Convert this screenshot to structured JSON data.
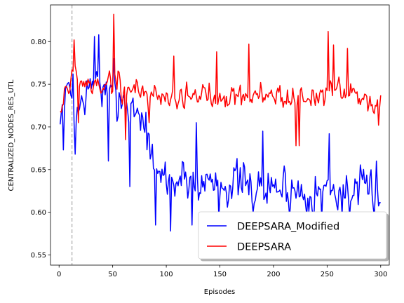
{
  "chart_data": {
    "type": "line",
    "xlabel": "Episodes",
    "ylabel": "CENTRALIZED_NODES_RES_UTL",
    "xlim": [
      -8,
      308
    ],
    "ylim": [
      0.538,
      0.843
    ],
    "xticks": [
      0,
      50,
      100,
      150,
      200,
      250,
      300
    ],
    "yticks": [
      0.55,
      0.6,
      0.65,
      0.7,
      0.75,
      0.8
    ],
    "ytick_labels": [
      "0.55",
      "0.60",
      "0.65",
      "0.70",
      "0.75",
      "0.80"
    ],
    "vline": {
      "x": 12,
      "style": "dashed",
      "color": "#bbbbbb"
    },
    "legend": {
      "position": "lower-right",
      "shadow": true
    },
    "series": [
      {
        "name": "DEEPSARA_Modified",
        "color": "#0000ff",
        "anchors": [
          [
            1,
            0.705
          ],
          [
            5,
            0.733
          ],
          [
            10,
            0.748
          ],
          [
            15,
            0.712
          ],
          [
            20,
            0.725
          ],
          [
            25,
            0.738
          ],
          [
            30,
            0.742
          ],
          [
            35,
            0.765
          ],
          [
            40,
            0.742
          ],
          [
            45,
            0.735
          ],
          [
            50,
            0.73
          ],
          [
            55,
            0.738
          ],
          [
            60,
            0.735
          ],
          [
            65,
            0.722
          ],
          [
            70,
            0.722
          ],
          [
            75,
            0.718
          ],
          [
            80,
            0.702
          ],
          [
            85,
            0.675
          ],
          [
            90,
            0.632
          ],
          [
            95,
            0.645
          ],
          [
            100,
            0.642
          ],
          [
            105,
            0.635
          ],
          [
            110,
            0.638
          ],
          [
            120,
            0.642
          ],
          [
            130,
            0.632
          ],
          [
            140,
            0.638
          ],
          [
            150,
            0.636
          ],
          [
            160,
            0.634
          ],
          [
            170,
            0.632
          ],
          [
            180,
            0.628
          ],
          [
            190,
            0.626
          ],
          [
            200,
            0.63
          ],
          [
            210,
            0.628
          ],
          [
            220,
            0.625
          ],
          [
            230,
            0.625
          ],
          [
            240,
            0.623
          ],
          [
            250,
            0.628
          ],
          [
            260,
            0.626
          ],
          [
            270,
            0.622
          ],
          [
            280,
            0.62
          ],
          [
            290,
            0.628
          ],
          [
            300,
            0.622
          ]
        ],
        "amp": [
          [
            1,
            0.022
          ],
          [
            20,
            0.03
          ],
          [
            50,
            0.035
          ],
          [
            80,
            0.035
          ],
          [
            95,
            0.035
          ],
          [
            150,
            0.036
          ],
          [
            300,
            0.032
          ]
        ],
        "seed": 7,
        "count": 300,
        "points": [
          [
            1,
            0.703
          ],
          [
            4,
            0.673
          ],
          [
            13,
            0.762
          ],
          [
            15,
            0.668
          ],
          [
            33,
            0.806
          ],
          [
            37,
            0.808
          ],
          [
            46,
            0.66
          ],
          [
            51,
            0.78
          ],
          [
            66,
            0.63
          ],
          [
            90,
            0.585
          ],
          [
            104,
            0.578
          ],
          [
            124,
            0.585
          ],
          [
            128,
            0.705
          ],
          [
            149,
            0.593
          ],
          [
            190,
            0.695
          ],
          [
            245,
            0.592
          ],
          [
            252,
            0.692
          ],
          [
            264,
            0.597
          ],
          [
            296,
            0.66
          ],
          [
            300,
            0.611
          ]
        ]
      },
      {
        "name": "DEEPSARA",
        "color": "#ff0000",
        "anchors": [
          [
            1,
            0.715
          ],
          [
            5,
            0.745
          ],
          [
            10,
            0.748
          ],
          [
            15,
            0.768
          ],
          [
            20,
            0.748
          ],
          [
            25,
            0.752
          ],
          [
            30,
            0.745
          ],
          [
            35,
            0.752
          ],
          [
            40,
            0.75
          ],
          [
            45,
            0.748
          ],
          [
            50,
            0.755
          ],
          [
            55,
            0.752
          ],
          [
            60,
            0.742
          ],
          [
            70,
            0.745
          ],
          [
            80,
            0.74
          ],
          [
            90,
            0.738
          ],
          [
            100,
            0.736
          ],
          [
            120,
            0.735
          ],
          [
            140,
            0.738
          ],
          [
            160,
            0.738
          ],
          [
            180,
            0.736
          ],
          [
            200,
            0.738
          ],
          [
            220,
            0.732
          ],
          [
            240,
            0.738
          ],
          [
            260,
            0.74
          ],
          [
            280,
            0.736
          ],
          [
            300,
            0.726
          ]
        ],
        "amp": [
          [
            1,
            0.018
          ],
          [
            50,
            0.022
          ],
          [
            100,
            0.02
          ],
          [
            300,
            0.02
          ]
        ],
        "seed": 19,
        "count": 300,
        "points": [
          [
            1,
            0.718
          ],
          [
            14,
            0.802
          ],
          [
            18,
            0.705
          ],
          [
            51,
            0.832
          ],
          [
            62,
            0.685
          ],
          [
            84,
            0.705
          ],
          [
            107,
            0.783
          ],
          [
            147,
            0.788
          ],
          [
            177,
            0.797
          ],
          [
            221,
            0.678
          ],
          [
            224,
            0.678
          ],
          [
            251,
            0.812
          ],
          [
            256,
            0.796
          ],
          [
            269,
            0.792
          ],
          [
            298,
            0.702
          ],
          [
            300,
            0.737
          ]
        ]
      }
    ]
  }
}
